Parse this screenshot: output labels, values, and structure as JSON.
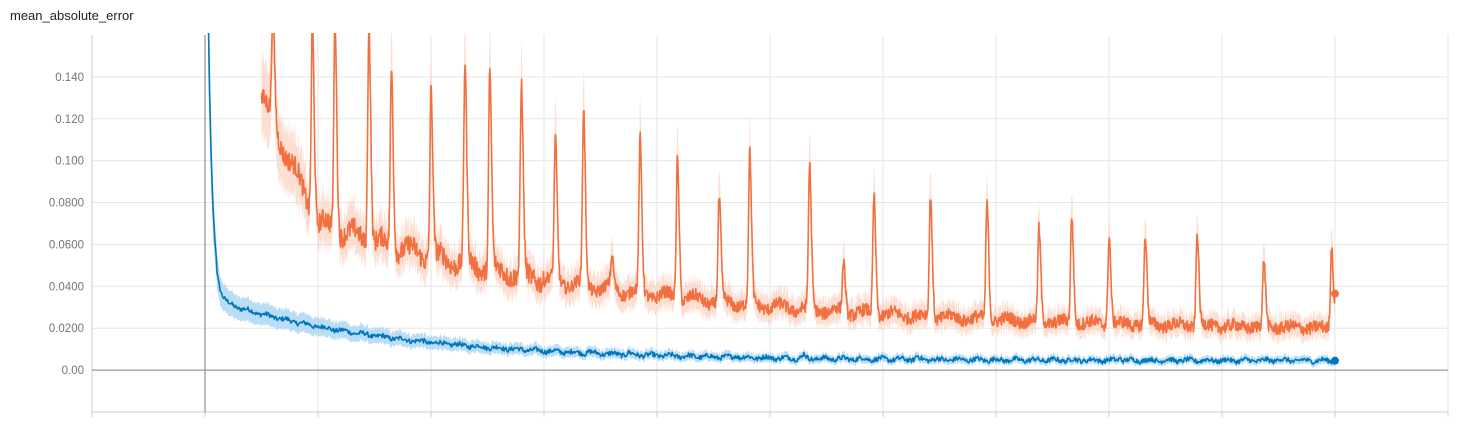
{
  "chart_data": {
    "type": "line",
    "title": "mean_absolute_error",
    "xlabel": "",
    "ylabel": "",
    "grid": true,
    "legend": "none",
    "xlim": [
      -1,
      11
    ],
    "ylim": [
      -0.02,
      0.16
    ],
    "y_ticks": [
      0,
      0.02,
      0.04,
      0.06,
      0.08,
      0.1,
      0.12,
      0.14
    ],
    "y_tick_labels": [
      "0.00",
      "0.0200",
      "0.0400",
      "0.0600",
      "0.0800",
      "0.100",
      "0.120",
      "0.140"
    ],
    "x_ticks": [
      -1,
      0,
      1,
      2,
      3,
      4,
      5,
      6,
      7,
      8,
      9,
      10,
      11
    ],
    "series": [
      {
        "color": "#0077bb",
        "band_color": "#a9d3f2",
        "description": "decays sharply from above top to about 0.035 then slowly to about 0.004",
        "final_x": 10.0,
        "final_y": 0.0045,
        "decay": {
          "start_x": 0.0,
          "start_y": 0.3,
          "tail": 0.035,
          "floor": 0.0045
        },
        "spikes": [
          {
            "x": 1.0,
            "y": 0.0185
          },
          {
            "x": 1.25,
            "y": 0.015
          },
          {
            "x": 1.75,
            "y": 0.0115
          },
          {
            "x": 2.0,
            "y": 0.011
          },
          {
            "x": 2.5,
            "y": 0.0095
          },
          {
            "x": 3.4,
            "y": 0.0085
          },
          {
            "x": 3.75,
            "y": 0.008
          },
          {
            "x": 4.7,
            "y": 0.0075
          },
          {
            "x": 5.3,
            "y": 0.0078
          },
          {
            "x": 6.3,
            "y": 0.007
          },
          {
            "x": 8.1,
            "y": 0.0065
          },
          {
            "x": 9.5,
            "y": 0.006
          }
        ]
      },
      {
        "color": "#f2703f",
        "band_color": "#fcd3c3",
        "description": "oscillating curve with periodic sharp spikes, decaying from above top to about 0.02 baseline",
        "final_x": 10.0,
        "final_y": 0.0365,
        "baseline": {
          "start_x": 0.5,
          "start_y": 0.13,
          "mid_x": 1.0,
          "mid_y": 0.07,
          "end_y": 0.018
        },
        "spikes": [
          {
            "x": 0.6,
            "y": 0.17
          },
          {
            "x": 0.95,
            "y": 0.17
          },
          {
            "x": 1.15,
            "y": 0.17
          },
          {
            "x": 1.45,
            "y": 0.17
          },
          {
            "x": 1.65,
            "y": 0.145
          },
          {
            "x": 2.0,
            "y": 0.134
          },
          {
            "x": 2.3,
            "y": 0.146
          },
          {
            "x": 2.52,
            "y": 0.142
          },
          {
            "x": 2.8,
            "y": 0.135
          },
          {
            "x": 3.1,
            "y": 0.11
          },
          {
            "x": 3.35,
            "y": 0.123
          },
          {
            "x": 3.6,
            "y": 0.052
          },
          {
            "x": 3.85,
            "y": 0.109
          },
          {
            "x": 4.18,
            "y": 0.102
          },
          {
            "x": 4.55,
            "y": 0.081
          },
          {
            "x": 4.82,
            "y": 0.103
          },
          {
            "x": 5.35,
            "y": 0.097
          },
          {
            "x": 5.65,
            "y": 0.052
          },
          {
            "x": 5.92,
            "y": 0.084
          },
          {
            "x": 6.42,
            "y": 0.084
          },
          {
            "x": 6.92,
            "y": 0.08
          },
          {
            "x": 7.38,
            "y": 0.067
          },
          {
            "x": 7.67,
            "y": 0.074
          },
          {
            "x": 8.0,
            "y": 0.065
          },
          {
            "x": 8.32,
            "y": 0.064
          },
          {
            "x": 8.78,
            "y": 0.066
          },
          {
            "x": 9.37,
            "y": 0.052
          },
          {
            "x": 9.97,
            "y": 0.06
          }
        ]
      }
    ]
  }
}
